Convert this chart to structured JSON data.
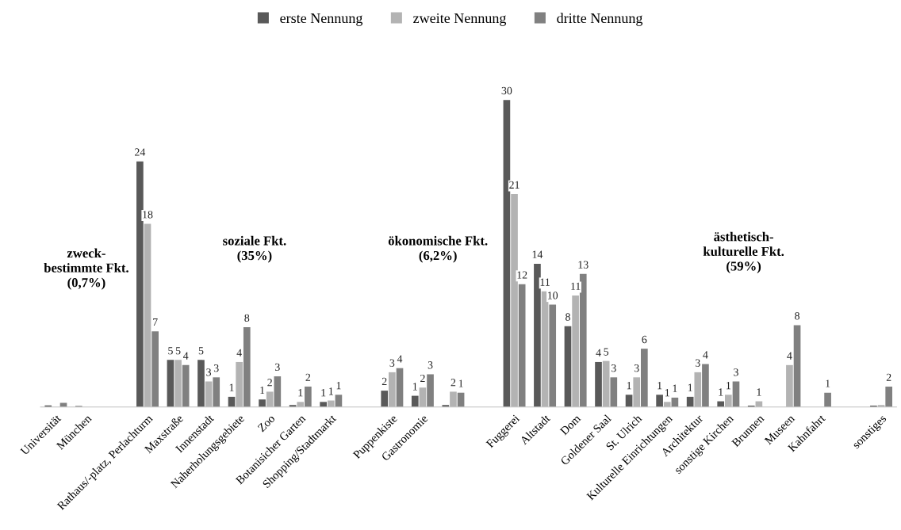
{
  "chart_data": {
    "type": "bar",
    "categories": [
      "Universität",
      "München",
      null,
      "Rathaus/-platz, Perlachturm",
      "Maxstraße",
      "Innenstadt",
      "Naherholungsgebiete",
      "Zoo",
      "Botanisicher Garten",
      "Shopping/Stadtmarkt",
      null,
      "Puppenkiste",
      "Gastronomie",
      null,
      null,
      "Fuggerei",
      "Altstadt",
      "Dom",
      "Goldener Saal",
      "St. Ulrich",
      "Kulturelle Einrichtungen",
      "Architektur",
      "sonstige Kirchen",
      "Brunnen",
      "Museen",
      "Kahnfahrt",
      null,
      "sonstiges"
    ],
    "series": [
      {
        "name": "erste Nennung",
        "color": "#595959",
        "values": [
          0.15,
          0.1,
          null,
          24,
          4.6,
          4.6,
          1.0,
          0.74,
          0.2,
          0.5,
          null,
          1.6,
          1.1,
          0.2,
          null,
          30,
          14,
          7.9,
          4.4,
          1.2,
          1.2,
          1.0,
          0.56,
          0.13,
          null,
          null,
          null,
          0.13
        ],
        "value_labels": [
          null,
          null,
          null,
          "24",
          "5",
          "5",
          "1",
          "1",
          null,
          "1",
          null,
          "2",
          "1",
          null,
          null,
          "30",
          "14",
          "8",
          "4",
          "1",
          "1",
          "1",
          "1",
          null,
          null,
          null,
          null,
          null
        ]
      },
      {
        "name": "zweite Nennung",
        "color": "#b3b3b3",
        "values": [
          null,
          null,
          null,
          17.9,
          4.6,
          2.5,
          4.4,
          1.5,
          0.5,
          0.64,
          null,
          3.4,
          1.9,
          1.5,
          null,
          20.8,
          11.3,
          10.9,
          4.5,
          2.9,
          0.5,
          3.4,
          1.2,
          0.56,
          4.1,
          null,
          null,
          0.2
        ],
        "value_labels": [
          null,
          null,
          null,
          "18",
          "5",
          "3",
          "4",
          "2",
          "1",
          "1",
          null,
          "3",
          "2",
          "2",
          null,
          "21",
          "11",
          "11",
          "5",
          "3",
          "1",
          "3",
          "1",
          "1",
          "4",
          null,
          null,
          null
        ]
      },
      {
        "name": "dritte Nennung",
        "color": "#808080",
        "values": [
          0.4,
          null,
          null,
          7.4,
          4.1,
          2.9,
          7.8,
          3.0,
          2.0,
          1.2,
          null,
          3.8,
          3.2,
          1.4,
          null,
          12,
          10,
          13,
          2.9,
          5.7,
          0.92,
          4.2,
          2.5,
          null,
          8.0,
          1.4,
          null,
          2.0
        ],
        "value_labels": [
          null,
          null,
          null,
          "7",
          "4",
          "3",
          "8",
          "3",
          "2",
          "1",
          null,
          "4",
          "3",
          "1",
          null,
          "12",
          "10",
          "13",
          "3",
          "6",
          "1",
          "4",
          "3",
          null,
          "8",
          "1",
          null,
          "2"
        ]
      }
    ],
    "annotations": [
      "zweck-\nbestimmte Fkt.\n(0,7%)",
      "soziale Fkt.\n(35%)",
      "ökonomische Fkt.\n(6,2%)",
      "ästhetisch-\nkulturelle Fkt.\n(59%)"
    ],
    "legend": "top",
    "grid": false
  }
}
